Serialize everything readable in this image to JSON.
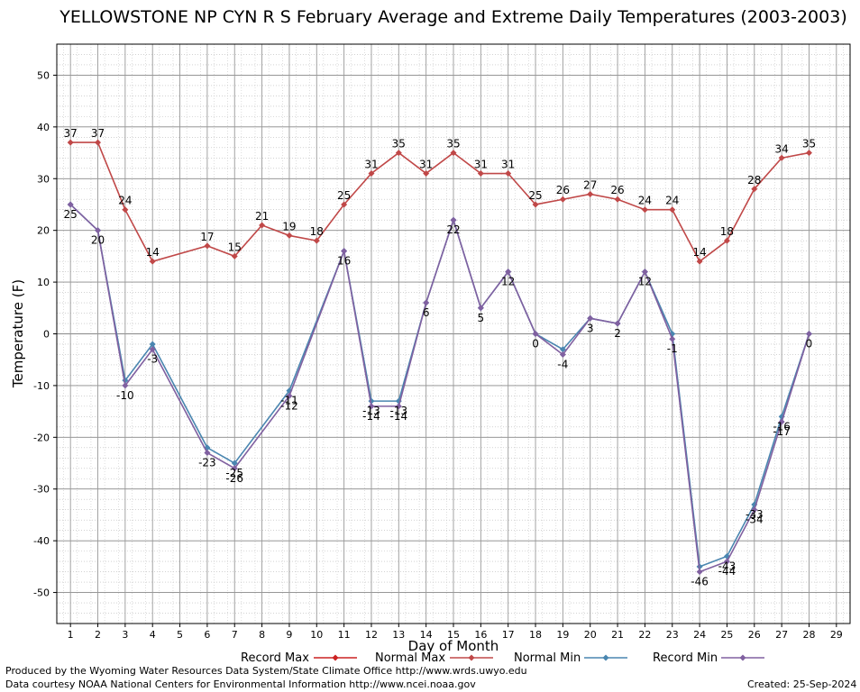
{
  "chart_data": {
    "type": "line",
    "title": "YELLOWSTONE NP CYN R S February Average and Extreme Daily Temperatures (2003-2003)",
    "xlabel": "Day of Month",
    "ylabel": "Temperature (F)",
    "xlim": [
      0.5,
      29.5
    ],
    "ylim": [
      -56,
      56
    ],
    "x_ticks": [
      1,
      2,
      3,
      4,
      5,
      6,
      7,
      8,
      9,
      10,
      11,
      12,
      13,
      14,
      15,
      16,
      17,
      18,
      19,
      20,
      21,
      22,
      23,
      24,
      25,
      26,
      27,
      28,
      29
    ],
    "y_ticks": [
      -50,
      -40,
      -30,
      -20,
      -10,
      0,
      10,
      20,
      30,
      40,
      50
    ],
    "grid": true,
    "series": [
      {
        "name": "Record Max",
        "color": "#cc2222",
        "x": [],
        "values": []
      },
      {
        "name": "Normal Max",
        "color": "#c04848",
        "x": [
          1,
          2,
          3,
          4,
          6,
          7,
          8,
          9,
          10,
          11,
          12,
          13,
          14,
          15,
          16,
          17,
          18,
          19,
          20,
          21,
          22,
          23,
          24,
          25,
          26,
          27,
          28
        ],
        "values": [
          37,
          37,
          24,
          14,
          17,
          15,
          21,
          19,
          18,
          25,
          31,
          35,
          31,
          35,
          31,
          31,
          25,
          26,
          27,
          26,
          24,
          24,
          14,
          18,
          28,
          34,
          35
        ],
        "labels": [
          "37",
          "37",
          "24",
          "14",
          "17",
          "15",
          "21",
          "19",
          "18",
          "25",
          "31",
          "35",
          "31",
          "35",
          "31",
          "31",
          "25",
          "26",
          "27",
          "26",
          "24",
          "24",
          "14",
          "18",
          "28",
          "34",
          "35"
        ]
      },
      {
        "name": "Normal Min",
        "color": "#4a86b0",
        "x": [
          1,
          2,
          3,
          4,
          6,
          7,
          9,
          11,
          12,
          13,
          14,
          15,
          16,
          17,
          18,
          19,
          20,
          21,
          22,
          23,
          24,
          25,
          26,
          27,
          28
        ],
        "values": [
          25,
          20,
          -9,
          -2,
          -22,
          -25,
          -11,
          16,
          -13,
          -13,
          6,
          22,
          5,
          12,
          0,
          -3,
          3,
          2,
          12,
          0,
          -45,
          -43,
          -33,
          -16,
          0
        ],
        "labels": [
          "",
          "",
          "",
          "",
          "",
          "-25",
          "-11",
          "",
          "-13",
          "-13",
          "",
          "",
          "",
          "",
          "",
          "",
          "",
          "",
          "",
          "",
          "",
          "-43",
          "-33",
          "-16",
          ""
        ]
      },
      {
        "name": "Record Min",
        "color": "#8060a0",
        "x": [
          1,
          2,
          3,
          4,
          6,
          7,
          9,
          11,
          12,
          13,
          14,
          15,
          16,
          17,
          18,
          19,
          20,
          21,
          22,
          23,
          24,
          25,
          26,
          27,
          28
        ],
        "values": [
          25,
          20,
          -10,
          -3,
          -23,
          -26,
          -12,
          16,
          -14,
          -14,
          6,
          22,
          5,
          12,
          0,
          -4,
          3,
          2,
          12,
          -1,
          -46,
          -44,
          -34,
          -17,
          0
        ],
        "labels": [
          "25",
          "20",
          "-10",
          "-3",
          "-23",
          "-26",
          "-12",
          "16",
          "-14",
          "-14",
          "6",
          "22",
          "5",
          "12",
          "0",
          "-4",
          "3",
          "2",
          "12",
          "-1",
          "-46",
          "-44",
          "-34",
          "-17",
          "0"
        ]
      }
    ],
    "legend_position": "bottom"
  },
  "footer": {
    "produced_by": "Produced by the Wyoming Water Resources Data System/State Climate Office http://www.wrds.uwyo.edu",
    "courtesy": "Data courtesy NOAA National Centers for Environmental Information http://www.ncei.noaa.gov",
    "created": "Created:  25-Sep-2024"
  }
}
